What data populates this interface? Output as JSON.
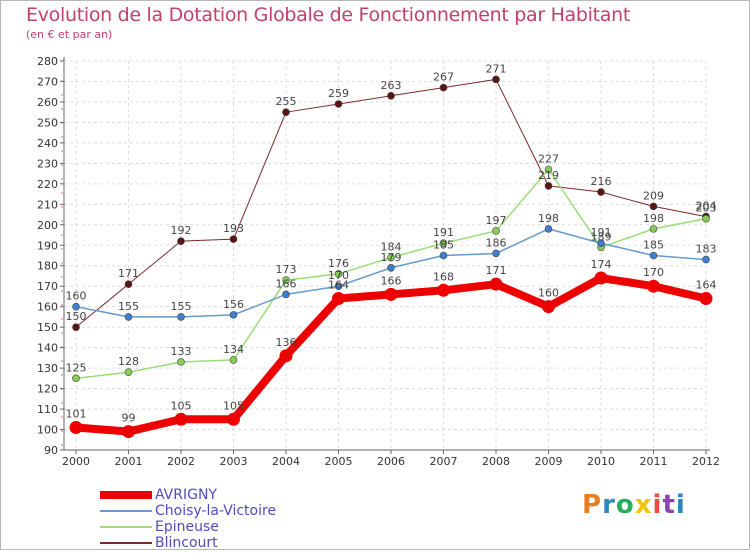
{
  "header": {
    "title": "Evolution de la Dotation Globale de Fonctionnement par Habitant",
    "subtitle": "(en € et par an)"
  },
  "logo": {
    "text": "Proxiti",
    "colors": [
      "#e67e22",
      "#2e86c1",
      "#27ae60",
      "#f1c40f",
      "#e74c3c",
      "#8e44ad",
      "#2e86c1"
    ]
  },
  "chart_data": {
    "type": "line",
    "title": "Evolution de la Dotation Globale de Fonctionnement par Habitant",
    "subtitle": "(en € et par an)",
    "xlabel": "",
    "ylabel": "",
    "ylim": [
      90,
      280
    ],
    "ytick_step": 10,
    "grid": true,
    "legend_position": "bottom-left",
    "x": [
      "2000",
      "2001",
      "2002",
      "2003",
      "2004",
      "2005",
      "2006",
      "2007",
      "2008",
      "2009",
      "2010",
      "2011",
      "2012"
    ],
    "series": [
      {
        "name": "Blincourt",
        "color": "#7a2a2a",
        "marker": "#5a1414",
        "width": 1,
        "values": [
          150,
          171,
          192,
          193,
          255,
          259,
          263,
          267,
          271,
          219,
          216,
          209,
          204
        ]
      },
      {
        "name": "Epineuse",
        "color": "#99dd77",
        "marker": "#88cc55",
        "width": 1.5,
        "values": [
          125,
          128,
          133,
          134,
          173,
          176,
          184,
          191,
          197,
          227,
          189,
          198,
          203
        ]
      },
      {
        "name": "Choisy-la-Victoire",
        "color": "#6699cc",
        "marker": "#3d7ecf",
        "width": 1.5,
        "values": [
          160,
          155,
          155,
          156,
          166,
          170,
          179,
          185,
          186,
          198,
          191,
          185,
          183
        ]
      },
      {
        "name": "AVRIGNY",
        "color": "#ee0000",
        "marker": "#ee0000",
        "width": 8,
        "values": [
          101,
          99,
          105,
          105,
          136,
          164,
          166,
          168,
          171,
          160,
          174,
          170,
          164
        ]
      }
    ],
    "legend_order": [
      "AVRIGNY",
      "Choisy-la-Victoire",
      "Epineuse",
      "Blincourt"
    ]
  }
}
